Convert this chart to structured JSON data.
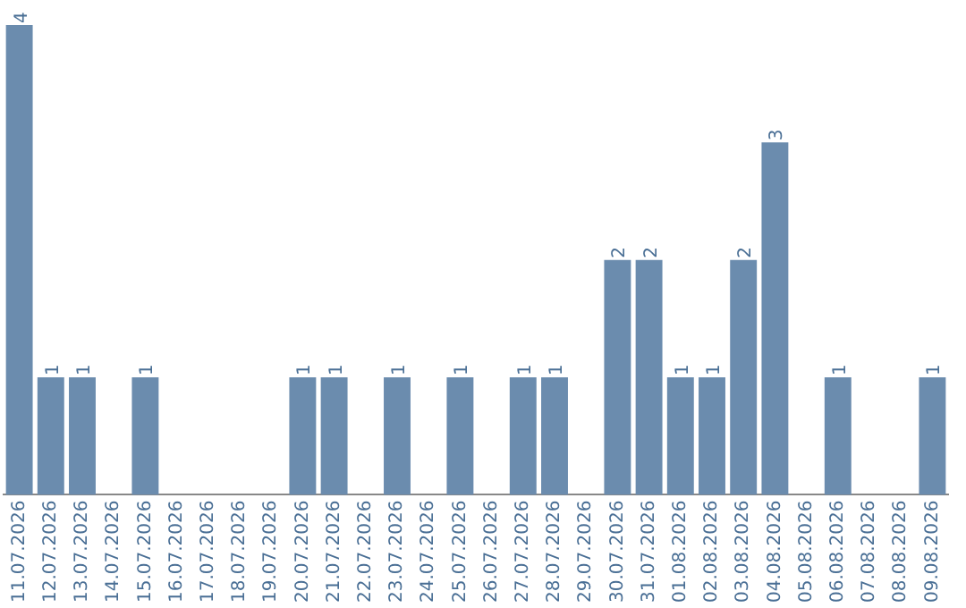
{
  "chart_data": {
    "type": "bar",
    "categories": [
      "11.07.2026",
      "12.07.2026",
      "13.07.2026",
      "14.07.2026",
      "15.07.2026",
      "16.07.2026",
      "17.07.2026",
      "18.07.2026",
      "19.07.2026",
      "20.07.2026",
      "21.07.2026",
      "22.07.2026",
      "23.07.2026",
      "24.07.2026",
      "25.07.2026",
      "26.07.2026",
      "27.07.2026",
      "28.07.2026",
      "29.07.2026",
      "30.07.2026",
      "31.07.2026",
      "01.08.2026",
      "02.08.2026",
      "03.08.2026",
      "04.08.2026",
      "05.08.2026",
      "06.08.2026",
      "07.08.2026",
      "08.08.2026",
      "09.08.2026"
    ],
    "values": [
      4,
      1,
      1,
      0,
      1,
      0,
      0,
      0,
      0,
      1,
      1,
      0,
      1,
      0,
      1,
      0,
      1,
      1,
      0,
      2,
      2,
      1,
      1,
      2,
      3,
      0,
      1,
      0,
      0,
      1
    ],
    "value_labels": [
      "4",
      "1",
      "1",
      null,
      "1",
      null,
      null,
      null,
      null,
      "1",
      "1",
      null,
      "1",
      null,
      "1",
      null,
      "1",
      "1",
      null,
      "2",
      "2",
      "1",
      "1",
      "2",
      "3",
      null,
      "1",
      null,
      null,
      "1"
    ],
    "color": "#6b8cae",
    "grid": false,
    "legend": false
  }
}
